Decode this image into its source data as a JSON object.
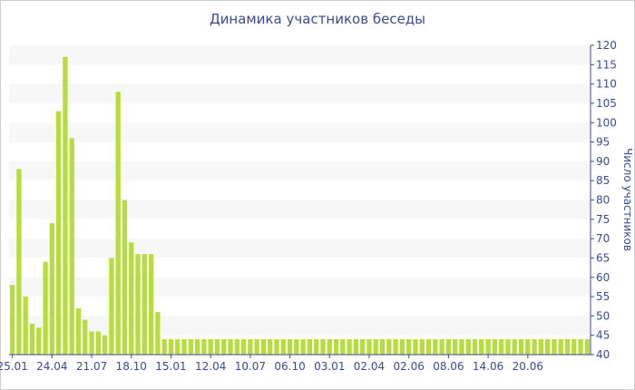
{
  "chart_data": {
    "type": "bar",
    "title": "Динамика участников беседы",
    "ylabel": "Число участников",
    "ylim": [
      40,
      120
    ],
    "y_ticks": [
      40,
      45,
      50,
      55,
      60,
      65,
      70,
      75,
      80,
      85,
      90,
      95,
      100,
      105,
      110,
      115,
      120
    ],
    "y_axis_position": "right",
    "x_tick_labels": [
      {
        "label": "25.01",
        "index": 0
      },
      {
        "label": "24.04",
        "index": 6
      },
      {
        "label": "21.07",
        "index": 12
      },
      {
        "label": "18.10",
        "index": 18
      },
      {
        "label": "15.01",
        "index": 24
      },
      {
        "label": "12.04",
        "index": 30
      },
      {
        "label": "10.07",
        "index": 36
      },
      {
        "label": "06.10",
        "index": 42
      },
      {
        "label": "03.01",
        "index": 48
      },
      {
        "label": "02.04",
        "index": 54
      },
      {
        "label": "02.06",
        "index": 60
      },
      {
        "label": "08.06",
        "index": 66
      },
      {
        "label": "14.06",
        "index": 72
      },
      {
        "label": "20.06",
        "index": 78
      }
    ],
    "values": [
      58,
      88,
      55,
      48,
      47,
      64,
      74,
      103,
      117,
      96,
      52,
      49,
      46,
      46,
      45,
      65,
      108,
      80,
      69,
      66,
      66,
      66,
      51,
      44,
      44,
      44,
      44,
      44,
      44,
      44,
      44,
      44,
      44,
      44,
      44,
      44,
      44,
      44,
      44,
      44,
      44,
      44,
      44,
      44,
      44,
      44,
      44,
      44,
      44,
      44,
      44,
      44,
      44,
      44,
      44,
      44,
      44,
      44,
      44,
      44,
      44,
      44,
      44,
      44,
      44,
      44,
      44,
      44,
      44,
      44,
      44,
      44,
      44,
      44,
      44,
      44,
      44,
      44,
      44,
      44,
      44,
      44,
      44,
      44,
      44,
      44,
      44,
      44
    ],
    "grid": "alternating horizontal bands",
    "colors": {
      "bar": "#b8dc3c",
      "band": "#f7f7f7",
      "axis": "#3d4a8f",
      "text": "#3d4a8f"
    }
  }
}
